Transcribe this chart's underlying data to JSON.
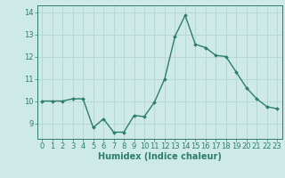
{
  "x": [
    0,
    1,
    2,
    3,
    4,
    5,
    6,
    7,
    8,
    9,
    10,
    11,
    12,
    13,
    14,
    15,
    16,
    17,
    18,
    19,
    20,
    21,
    22,
    23
  ],
  "y": [
    10.0,
    10.0,
    10.0,
    10.1,
    10.1,
    8.8,
    9.2,
    8.6,
    8.6,
    9.35,
    9.3,
    9.95,
    11.0,
    12.9,
    13.85,
    12.55,
    12.4,
    12.05,
    12.0,
    11.3,
    10.6,
    10.1,
    9.75,
    9.65
  ],
  "line_color": "#2d7d6e",
  "marker": "D",
  "marker_size": 2.0,
  "linewidth": 1.0,
  "background_color": "#ceeae6",
  "grid_color": "#b8d8d4",
  "tick_color": "#2d7d6e",
  "label_color": "#2d7d6e",
  "xlabel": "Humidex (Indice chaleur)",
  "xlim": [
    -0.5,
    23.5
  ],
  "ylim": [
    8.3,
    14.3
  ],
  "yticks": [
    9,
    10,
    11,
    12,
    13,
    14
  ],
  "xticks": [
    0,
    1,
    2,
    3,
    4,
    5,
    6,
    7,
    8,
    9,
    10,
    11,
    12,
    13,
    14,
    15,
    16,
    17,
    18,
    19,
    20,
    21,
    22,
    23
  ],
  "xlabel_fontsize": 7.0,
  "tick_fontsize": 6.0
}
